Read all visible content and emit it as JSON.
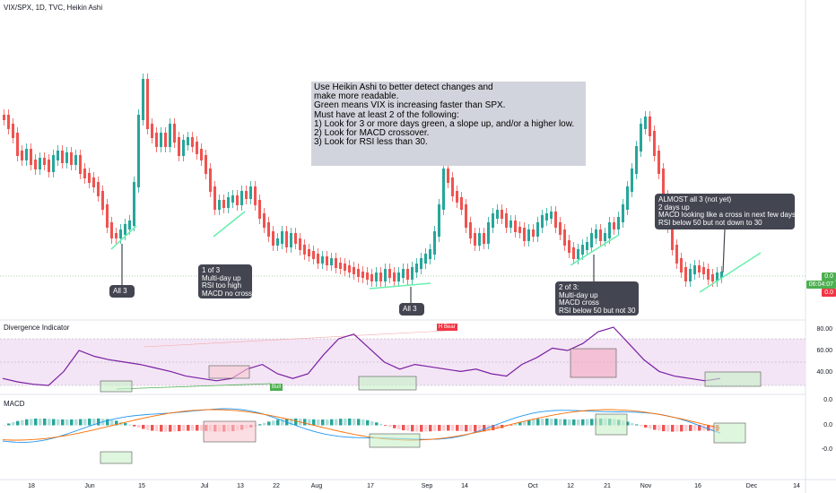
{
  "header": {
    "title": "VIX/SPX, 1D, TVC, Heikin Ashi"
  },
  "price_pane": {
    "badges": [
      {
        "text": "0.0",
        "color": "#4caf50"
      },
      {
        "text": "06:04:07",
        "color": "#4caf50"
      },
      {
        "text": "0.0",
        "color": "#f23645"
      }
    ]
  },
  "note": {
    "lines": [
      "Use Heikin Ashi to better detect changes and",
      "make more readable.",
      "",
      "Green means VIX is increasing faster than SPX.",
      "",
      "Must have at least 2 of the following:",
      "1) Look for 3 or more days green, a slope up, and/or a higher low.",
      "2) Look for MACD crossover.",
      "3) Look for RSI less than 30."
    ]
  },
  "callouts": {
    "c1": "All 3",
    "c2": "1 of 3\nMulti-day up\nRSI too high\nMACD no cross",
    "c3": "All 3",
    "c4": "2 of 3:\nMulti-day up\nMACD cross\nRSI below 50 but not 30",
    "c5": "ALMOST all 3 (not yet)\n2 days up\nMACD looking like a cross in next few days\nRSI below 50 but not down to 30"
  },
  "divergence_pane": {
    "title": "Divergence Indicator",
    "scale": [
      "80.00",
      "60.00",
      "40.00"
    ],
    "flags": {
      "bear": "H Bear",
      "bull": "Bull"
    }
  },
  "macd_pane": {
    "title": "MACD",
    "scale": [
      "0.0",
      "0.0",
      "-0.0"
    ]
  },
  "dates": [
    "18",
    "Jun",
    "15",
    "Jul",
    "13",
    "22",
    "Aug",
    "17",
    "Sep",
    "14",
    "Oct",
    "12",
    "21",
    "Nov",
    "16",
    "Dec",
    "14"
  ],
  "colors": {
    "up": "#26a69a",
    "down": "#ef5350",
    "trend": "#69f0ae",
    "rsi_line": "#7b1fa2",
    "rsi_band": "#f3e5f5",
    "callout_bg": "#434651",
    "note_bg": "#d1d4dc"
  },
  "chart_data": {
    "type": "candlestick",
    "series_price": [
      {
        "d": "down",
        "c": 3
      },
      {
        "d": "down",
        "c": 8
      },
      {
        "d": "down",
        "c": 6
      },
      {
        "d": "up",
        "c": 4
      },
      {
        "d": "down",
        "c": 7
      },
      {
        "d": "down",
        "c": 8
      },
      {
        "d": "up",
        "c": 5
      },
      {
        "d": "down",
        "c": 9
      },
      {
        "d": "up",
        "c": 6
      },
      {
        "d": "up",
        "c": 8
      },
      {
        "d": "down",
        "c": 4
      },
      {
        "d": "up",
        "c": 10
      },
      {
        "d": "down",
        "c": 6
      },
      {
        "d": "down",
        "c": 10
      },
      {
        "d": "up",
        "c": 5
      },
      {
        "d": "down",
        "c": 7
      }
    ],
    "series_rsi": [
      {
        "name": "RSI",
        "values": [
          36,
          33,
          31,
          30,
          42,
          60,
          55,
          52,
          50,
          48,
          45,
          42,
          38,
          36,
          34,
          36,
          44,
          48,
          40,
          36,
          40,
          56,
          70,
          74,
          62,
          50,
          44,
          48,
          46,
          44,
          42,
          44,
          40,
          38,
          48,
          54,
          62,
          60,
          66,
          76,
          80,
          66,
          52,
          42,
          38,
          36,
          34,
          36
        ]
      }
    ],
    "macd_scale": [
      "0.0",
      "0.0",
      "-0.0"
    ]
  }
}
